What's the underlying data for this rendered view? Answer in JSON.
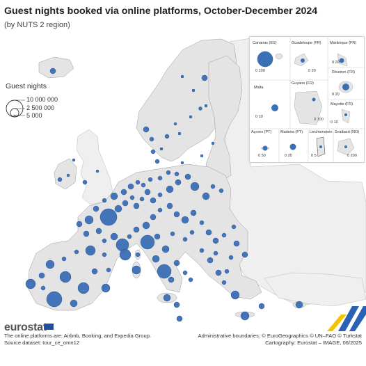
{
  "header": {
    "title": "Guest nights booked via online platforms, October-December 2024",
    "subtitle": "(by NUTS 2 region)"
  },
  "legend": {
    "title": "Guest nights",
    "entries": [
      {
        "label": "10 000 000",
        "value": 10000000
      },
      {
        "label": "2 500 000",
        "value": 2500000
      },
      {
        "label": "5 000",
        "value": 5000
      }
    ]
  },
  "insets": [
    {
      "label": "Canarias (ES)",
      "scale": "0  100"
    },
    {
      "label": "Guadeloupe (FR)",
      "scale": "0  20"
    },
    {
      "label": "Martinique (FR)",
      "scale": "0  20"
    },
    {
      "label": "Réunion (FR)",
      "scale": "0  20"
    },
    {
      "label": "Malta",
      "scale": "0  10"
    },
    {
      "label": "Guyane (FR)",
      "scale": "0  100"
    },
    {
      "label": "Mayotte (FR)",
      "scale": "0  10"
    },
    {
      "label": "Açores (PT)",
      "scale": "0  50"
    },
    {
      "label": "Madeira (PT)",
      "scale": "0  20"
    },
    {
      "label": "Liechtenstein",
      "scale": "0  5"
    },
    {
      "label": "Svalbard (NO)",
      "scale": "0  200"
    }
  ],
  "colors": {
    "bubble": "#3a6eb5",
    "bubble_stroke": "#2a5592",
    "land": "#e4e4e4",
    "land_other": "#efefef",
    "border": "#9a9a9a",
    "sea": "#ffffff"
  },
  "footer": {
    "brand": "eurostat",
    "note": "The online platforms are: Airbnb, Booking, and Expedia Group.",
    "source": "Source dataset: tour_ce_omn12",
    "boundaries": "Administrative boundaries: © EuroGeographics © UN–FAO © Turkstat",
    "cartography": "Cartography: Eurostat – IMAGE, 06/2025"
  }
}
